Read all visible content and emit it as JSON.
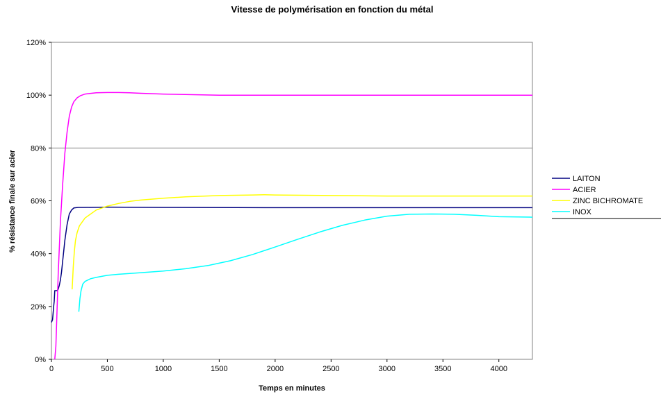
{
  "chart_data": {
    "type": "line",
    "title": "Vitesse de polymérisation en fonction du métal",
    "xlabel": "Temps en minutes",
    "ylabel": "% résistance finale sur acier",
    "xlim": [
      0,
      4300
    ],
    "ylim": [
      0,
      120
    ],
    "x_ticks": [
      "0",
      "500",
      "1000",
      "1500",
      "2000",
      "2500",
      "3000",
      "3500",
      "4000"
    ],
    "y_ticks": [
      "0%",
      "20%",
      "40%",
      "60%",
      "80%",
      "100%",
      "120%"
    ],
    "gridlines_y": [
      80
    ],
    "legend_position": "right",
    "series": [
      {
        "name": "LAITON",
        "color": "#000080",
        "x": [
          0,
          10,
          20,
          25,
          30,
          35,
          40,
          50,
          60,
          70,
          80,
          90,
          100,
          120,
          140,
          160,
          180,
          200,
          240,
          300,
          500,
          1000,
          2000,
          3000,
          4300
        ],
        "y": [
          14,
          15,
          20,
          22,
          26,
          26,
          26,
          26,
          26.5,
          28,
          30,
          33,
          37,
          45,
          51,
          55,
          56.5,
          57.3,
          57.5,
          57.5,
          57.6,
          57.5,
          57.4,
          57.4,
          57.4
        ]
      },
      {
        "name": "ACIER",
        "color": "#ff00ff",
        "x": [
          30,
          40,
          50,
          60,
          80,
          100,
          120,
          140,
          160,
          180,
          200,
          230,
          260,
          300,
          400,
          500,
          600,
          700,
          800,
          1000,
          1500,
          2000,
          3000,
          4300
        ],
        "y": [
          0,
          5,
          18,
          32,
          52,
          66,
          78,
          86,
          92,
          95.5,
          97.5,
          99,
          99.8,
          100.4,
          100.9,
          101,
          101,
          100.9,
          100.7,
          100.4,
          100,
          100,
          100,
          100
        ]
      },
      {
        "name": "ZINC BICHROMATE",
        "color": "#ffff00",
        "x": [
          185,
          195,
          205,
          215,
          230,
          250,
          300,
          400,
          500,
          600,
          700,
          800,
          1000,
          1200,
          1500,
          1800,
          1900,
          2000,
          2500,
          3000,
          3500,
          4000,
          4300
        ],
        "y": [
          26.5,
          35,
          41,
          45,
          48,
          50.5,
          53.5,
          56.5,
          58,
          59,
          59.8,
          60.3,
          61,
          61.5,
          62,
          62.2,
          62.3,
          62.2,
          62,
          61.8,
          61.8,
          61.8,
          61.8
        ]
      },
      {
        "name": "INOX",
        "color": "#00ffff",
        "x": [
          245,
          255,
          265,
          280,
          300,
          350,
          400,
          500,
          600,
          800,
          1000,
          1200,
          1400,
          1600,
          1800,
          2000,
          2200,
          2400,
          2600,
          2800,
          3000,
          3200,
          3400,
          3600,
          3800,
          4000,
          4300
        ],
        "y": [
          18,
          23,
          26,
          28.5,
          29.5,
          30.5,
          31,
          31.8,
          32.2,
          32.8,
          33.4,
          34.3,
          35.5,
          37.3,
          39.7,
          42.5,
          45.4,
          48.2,
          50.7,
          52.7,
          54.2,
          54.9,
          55,
          54.9,
          54.5,
          54,
          53.8
        ]
      }
    ]
  }
}
